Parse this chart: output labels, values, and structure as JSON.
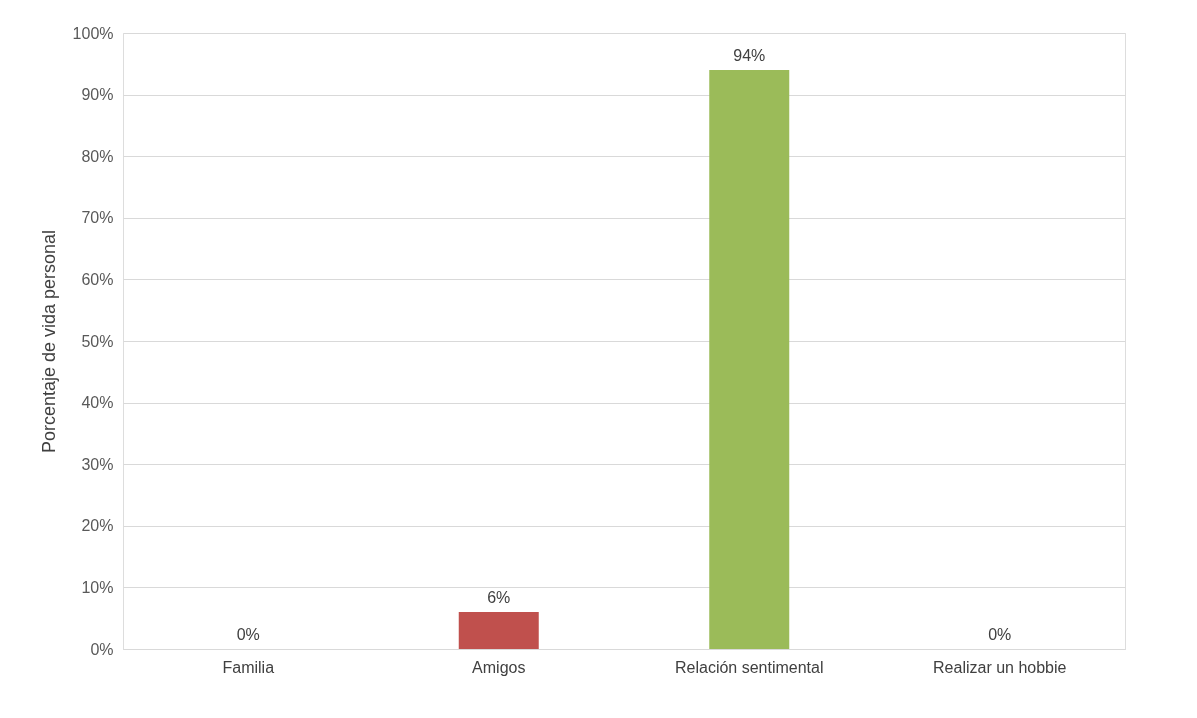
{
  "chart_data": {
    "type": "bar",
    "ylabel": "Porcentaje de vida  personal",
    "categories": [
      "Familia",
      "Amigos",
      "Relación sentimental",
      "Realizar un hobbie"
    ],
    "values": [
      0,
      6,
      94,
      0
    ],
    "colors": [
      "#4f81bd",
      "#c0504d",
      "#9bbb59",
      "#8064a2"
    ],
    "value_labels": [
      "0%",
      "6%",
      "94%",
      "0%"
    ],
    "ylim": [
      0,
      100
    ],
    "yticks": [
      {
        "value": 0,
        "label": "0%"
      },
      {
        "value": 10,
        "label": "10%"
      },
      {
        "value": 20,
        "label": "20%"
      },
      {
        "value": 30,
        "label": "30%"
      },
      {
        "value": 40,
        "label": "40%"
      },
      {
        "value": 50,
        "label": "50%"
      },
      {
        "value": 60,
        "label": "60%"
      },
      {
        "value": 70,
        "label": "70%"
      },
      {
        "value": 80,
        "label": "80%"
      },
      {
        "value": 90,
        "label": "90%"
      },
      {
        "value": 100,
        "label": "100%"
      }
    ],
    "grid": "y",
    "legend": false
  }
}
